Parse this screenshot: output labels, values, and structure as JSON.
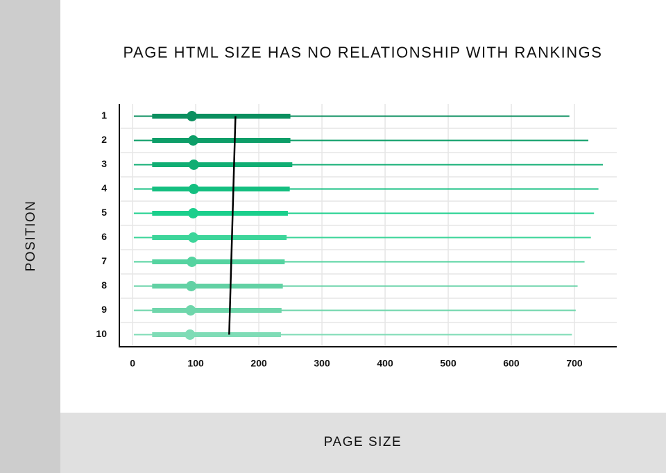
{
  "chart_data": {
    "type": "range",
    "title": "PAGE HTML SIZE HAS NO RELATIONSHIP WITH RANKINGS",
    "xlabel": "PAGE SIZE",
    "ylabel": "POSITION",
    "categories": [
      "1",
      "2",
      "3",
      "4",
      "5",
      "6",
      "7",
      "8",
      "9",
      "10"
    ],
    "min": [
      2,
      2,
      2,
      2,
      2,
      2,
      2,
      2,
      2,
      2
    ],
    "q1": [
      31,
      31,
      31,
      31,
      31,
      31,
      31,
      31,
      31,
      31
    ],
    "median": [
      94,
      96,
      97,
      97,
      96,
      96,
      94,
      93,
      92,
      91
    ],
    "q3": [
      250,
      250,
      253,
      249,
      246,
      244,
      241,
      238,
      236,
      235
    ],
    "max": [
      692,
      722,
      745,
      738,
      731,
      726,
      716,
      705,
      702,
      696
    ],
    "colors": [
      "#0b8f5f",
      "#0d9e68",
      "#10ae73",
      "#14bf80",
      "#1bcf8c",
      "#3dd59a",
      "#55d3a0",
      "#62d1a4",
      "#6fd6ab",
      "#7fdcb6"
    ],
    "trend": [
      163,
      153
    ],
    "trend_color": "#000000",
    "xlim": [
      -21,
      767
    ],
    "xticks": [
      0,
      100,
      200,
      300,
      400,
      500,
      600,
      700
    ],
    "grid": true
  }
}
